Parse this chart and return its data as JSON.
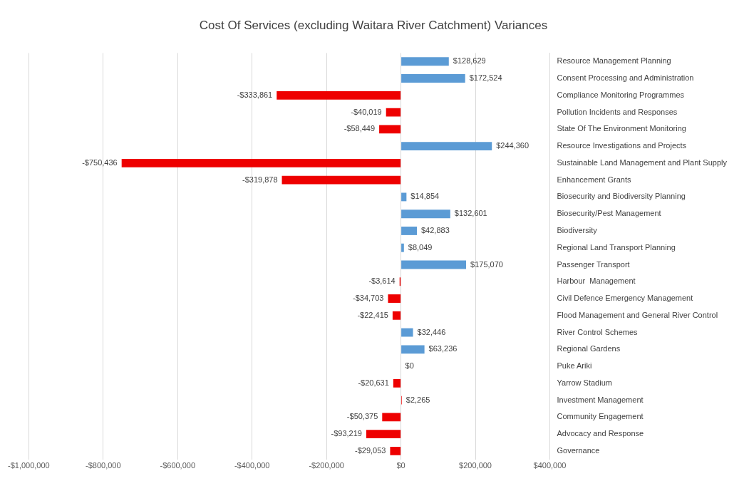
{
  "chart_data": {
    "type": "bar",
    "orientation": "horizontal",
    "title": "Cost Of Services (excluding Waitara River Catchment) Variances",
    "categories": [
      "Resource Management Planning",
      "Consent Processing and Administration",
      "Compliance Monitoring Programmes",
      "Pollution Incidents and Responses",
      "State Of The Environment Monitoring",
      "Resource Investigations and Projects",
      "Sustainable Land Management and Plant Supply",
      "Enhancement Grants",
      "Biosecurity and Biodiversity Planning",
      "Biosecurity/Pest Management",
      "Biodiversity",
      "Regional Land Transport Planning",
      "Passenger Transport",
      "Harbour  Management",
      "Civil Defence Emergency Management",
      "Flood Management and General River Control",
      "River Control Schemes",
      "Regional Gardens",
      "Puke Ariki",
      "Yarrow Stadium",
      "Investment Management",
      "Community Engagement",
      "Advocacy and Response",
      "Governance"
    ],
    "values": [
      128629,
      172524,
      -333861,
      -40019,
      -58449,
      244360,
      -750436,
      -319878,
      14854,
      132601,
      42883,
      8049,
      175070,
      -3614,
      -34703,
      -22415,
      32446,
      63236,
      0,
      -20631,
      2265,
      -50375,
      -93219,
      -29053
    ],
    "colors": [
      "#5b9bd5",
      "#5b9bd5",
      "#ee0000",
      "#ee0000",
      "#ee0000",
      "#5b9bd5",
      "#ee0000",
      "#ee0000",
      "#5b9bd5",
      "#5b9bd5",
      "#5b9bd5",
      "#5b9bd5",
      "#5b9bd5",
      "#ee0000",
      "#ee0000",
      "#ee0000",
      "#5b9bd5",
      "#5b9bd5",
      "#5b9bd5",
      "#ee0000",
      "#ee0000",
      "#ee0000",
      "#ee0000",
      "#ee0000"
    ],
    "value_labels": [
      "$128,629",
      "$172,524",
      "-$333,861",
      "-$40,019",
      "-$58,449",
      "$244,360",
      "-$750,436",
      "-$319,878",
      "$14,854",
      "$132,601",
      "$42,883",
      "$8,049",
      "$175,070",
      "-$3,614",
      "-$34,703",
      "-$22,415",
      "$32,446",
      "$63,236",
      "$0",
      "-$20,631",
      "$2,265",
      "-$50,375",
      "-$93,219",
      "-$29,053"
    ],
    "xlim": [
      -1000000,
      400000
    ],
    "xticks": [
      {
        "value": -1000000,
        "label": "-$1,000,000"
      },
      {
        "value": -800000,
        "label": "-$800,000"
      },
      {
        "value": -600000,
        "label": "-$600,000"
      },
      {
        "value": -400000,
        "label": "-$400,000"
      },
      {
        "value": -200000,
        "label": "-$200,000"
      },
      {
        "value": 0,
        "label": "$0"
      },
      {
        "value": 200000,
        "label": "$200,000"
      },
      {
        "value": 400000,
        "label": "$400,000"
      }
    ],
    "grid": "x",
    "legend": false
  }
}
